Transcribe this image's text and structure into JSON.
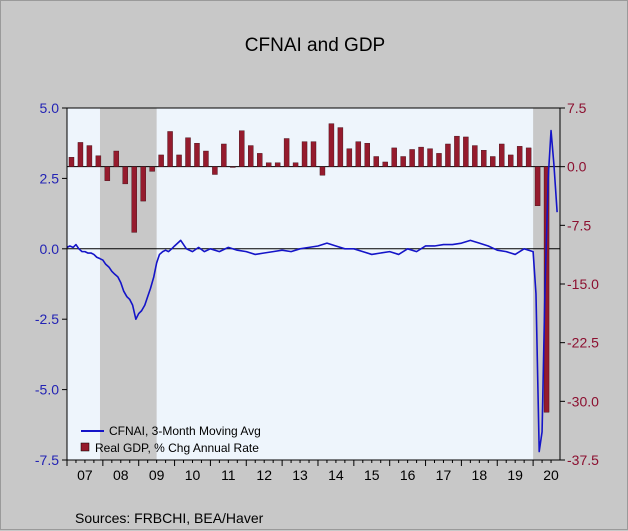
{
  "chart_data": {
    "type": "bar+line",
    "title": "CFNAI and GDP",
    "source": "Sources:  FRBCHI, BEA/Haver",
    "x_axis": {
      "tick_labels": [
        "07",
        "08",
        "09",
        "10",
        "11",
        "12",
        "13",
        "14",
        "15",
        "16",
        "17",
        "18",
        "19",
        "20"
      ],
      "start_year": 2007,
      "end_year": 2020.75
    },
    "left_axis": {
      "ylim": [
        -7.5,
        5.0
      ],
      "ticks": [
        5.0,
        2.5,
        0.0,
        -2.5,
        -5.0,
        -7.5
      ],
      "tick_labels": [
        "5.0",
        "2.5",
        "0.0",
        "-2.5",
        "-5.0",
        "-7.5"
      ]
    },
    "right_axis": {
      "ylim": [
        -37.5,
        7.5
      ],
      "ticks": [
        7.5,
        0.0,
        -7.5,
        -15.0,
        -22.5,
        -30.0,
        -37.5
      ],
      "tick_labels": [
        "7.5",
        "0.0",
        "-7.5",
        "-15.0",
        "-22.5",
        "-30.0",
        "-37.5"
      ]
    },
    "recessions": [
      [
        2007.92,
        2009.5
      ],
      [
        2020.0,
        2020.75
      ]
    ],
    "legend": {
      "placement": "bottom-left"
    },
    "colors": {
      "plot_bg": "#eef5fc",
      "line": "#1414c8",
      "bar": "#951b2d",
      "recession": "#c8c8c8",
      "left_axis": "#2323b4",
      "right_axis": "#8c1030"
    },
    "series": [
      {
        "name": "CFNAI, 3-Month Moving Avg",
        "axis": "left",
        "type": "line",
        "x": [
          2007.0,
          2007.08,
          2007.17,
          2007.25,
          2007.33,
          2007.42,
          2007.5,
          2007.58,
          2007.67,
          2007.75,
          2007.83,
          2007.92,
          2008.0,
          2008.08,
          2008.17,
          2008.25,
          2008.33,
          2008.42,
          2008.5,
          2008.58,
          2008.67,
          2008.75,
          2008.83,
          2008.92,
          2009.0,
          2009.08,
          2009.17,
          2009.25,
          2009.33,
          2009.42,
          2009.5,
          2009.58,
          2009.67,
          2009.75,
          2009.83,
          2009.92,
          2010.0,
          2010.17,
          2010.33,
          2010.5,
          2010.67,
          2010.83,
          2011.0,
          2011.25,
          2011.5,
          2011.75,
          2012.0,
          2012.25,
          2012.5,
          2012.75,
          2013.0,
          2013.25,
          2013.5,
          2013.75,
          2014.0,
          2014.25,
          2014.5,
          2014.75,
          2015.0,
          2015.25,
          2015.5,
          2015.75,
          2016.0,
          2016.25,
          2016.5,
          2016.75,
          2017.0,
          2017.25,
          2017.5,
          2017.75,
          2018.0,
          2018.25,
          2018.5,
          2018.75,
          2019.0,
          2019.25,
          2019.5,
          2019.75,
          2020.0,
          2020.08,
          2020.17,
          2020.25,
          2020.33,
          2020.42,
          2020.5,
          2020.58,
          2020.67
        ],
        "values": [
          0.05,
          0.1,
          0.05,
          0.15,
          0.0,
          -0.1,
          -0.1,
          -0.15,
          -0.15,
          -0.2,
          -0.3,
          -0.35,
          -0.4,
          -0.55,
          -0.65,
          -0.8,
          -0.9,
          -1.0,
          -1.2,
          -1.5,
          -1.7,
          -1.8,
          -2.0,
          -2.5,
          -2.3,
          -2.2,
          -2.0,
          -1.7,
          -1.4,
          -1.0,
          -0.5,
          -0.2,
          -0.1,
          -0.05,
          -0.1,
          0.0,
          0.1,
          0.3,
          0.0,
          -0.1,
          0.05,
          -0.1,
          0.0,
          -0.1,
          0.05,
          -0.05,
          -0.1,
          -0.2,
          -0.15,
          -0.1,
          -0.05,
          -0.1,
          0.0,
          0.05,
          0.1,
          0.2,
          0.1,
          0.0,
          0.0,
          -0.1,
          -0.2,
          -0.15,
          -0.1,
          -0.2,
          0.0,
          -0.1,
          0.1,
          0.1,
          0.15,
          0.15,
          0.2,
          0.3,
          0.2,
          0.1,
          -0.05,
          -0.1,
          -0.2,
          0.0,
          -0.1,
          -1.6,
          -7.2,
          -6.5,
          -1.5,
          2.5,
          4.2,
          3.0,
          1.3
        ]
      },
      {
        "name": "Real GDP, % Chg Annual Rate",
        "axis": "right",
        "type": "bar",
        "x": [
          2007.125,
          2007.375,
          2007.625,
          2007.875,
          2008.125,
          2008.375,
          2008.625,
          2008.875,
          2009.125,
          2009.375,
          2009.625,
          2009.875,
          2010.125,
          2010.375,
          2010.625,
          2010.875,
          2011.125,
          2011.375,
          2011.625,
          2011.875,
          2012.125,
          2012.375,
          2012.625,
          2012.875,
          2013.125,
          2013.375,
          2013.625,
          2013.875,
          2014.125,
          2014.375,
          2014.625,
          2014.875,
          2015.125,
          2015.375,
          2015.625,
          2015.875,
          2016.125,
          2016.375,
          2016.625,
          2016.875,
          2017.125,
          2017.375,
          2017.625,
          2017.875,
          2018.125,
          2018.375,
          2018.625,
          2018.875,
          2019.125,
          2019.375,
          2019.625,
          2019.875,
          2020.125,
          2020.375
        ],
        "values": [
          1.2,
          3.1,
          2.7,
          1.4,
          -1.8,
          2.0,
          -2.2,
          -8.4,
          -4.4,
          -0.6,
          1.5,
          4.5,
          1.5,
          3.7,
          3.0,
          2.0,
          -1.0,
          2.9,
          -0.1,
          4.6,
          2.7,
          1.7,
          0.5,
          0.5,
          3.6,
          0.5,
          3.2,
          3.2,
          -1.1,
          5.5,
          5.0,
          2.3,
          3.2,
          3.0,
          1.3,
          0.6,
          2.4,
          1.3,
          2.2,
          2.5,
          2.3,
          1.7,
          2.9,
          3.9,
          3.8,
          2.7,
          2.1,
          1.3,
          2.9,
          1.5,
          2.6,
          2.4,
          -5.0,
          -31.4
        ]
      }
    ]
  }
}
